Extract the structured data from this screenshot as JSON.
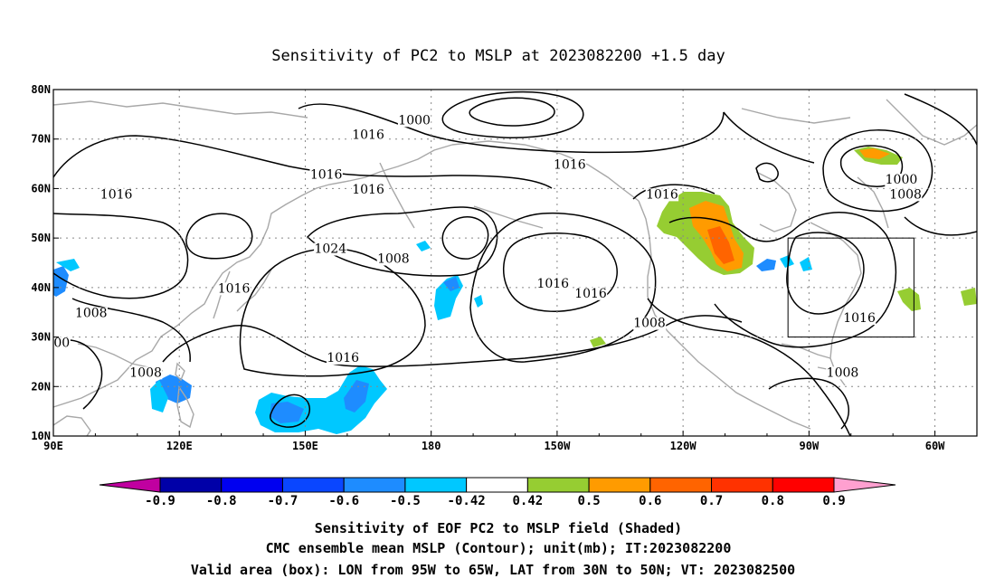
{
  "title": "Sensitivity of PC2 to MSLP at 2023082200 +1.5 day",
  "axes": {
    "x_ticks": [
      "90E",
      "120E",
      "150E",
      "180",
      "150W",
      "120W",
      "90W",
      "60W"
    ],
    "y_ticks": [
      "80N",
      "70N",
      "60N",
      "50N",
      "40N",
      "30N",
      "20N",
      "10N"
    ]
  },
  "map": {
    "lon_range": [
      90,
      310
    ],
    "lat_range": [
      10,
      80
    ],
    "valid_box": {
      "lon": [
        265,
        295
      ],
      "lat": [
        30,
        50
      ]
    }
  },
  "contour_labels": [
    {
      "text": "1000",
      "lon": 176,
      "lat": 73
    },
    {
      "text": "1016",
      "lon": 165,
      "lat": 70
    },
    {
      "text": "1016",
      "lon": 213,
      "lat": 64
    },
    {
      "text": "1016",
      "lon": 155,
      "lat": 62
    },
    {
      "text": "1016",
      "lon": 105,
      "lat": 58
    },
    {
      "text": "1016",
      "lon": 165,
      "lat": 59
    },
    {
      "text": "1016",
      "lon": 235,
      "lat": 58
    },
    {
      "text": "1000",
      "lon": 292,
      "lat": 61
    },
    {
      "text": "1008",
      "lon": 293,
      "lat": 58
    },
    {
      "text": "1024",
      "lon": 156,
      "lat": 47
    },
    {
      "text": "1008",
      "lon": 171,
      "lat": 45
    },
    {
      "text": "1016",
      "lon": 133,
      "lat": 39
    },
    {
      "text": "1016",
      "lon": 209,
      "lat": 40
    },
    {
      "text": "1016",
      "lon": 218,
      "lat": 38
    },
    {
      "text": "1008",
      "lon": 99,
      "lat": 34
    },
    {
      "text": "1016",
      "lon": 282,
      "lat": 33
    },
    {
      "text": "1008",
      "lon": 232,
      "lat": 32
    },
    {
      "text": "00",
      "lon": 92,
      "lat": 28
    },
    {
      "text": "1016",
      "lon": 159,
      "lat": 25
    },
    {
      "text": "1008",
      "lon": 112,
      "lat": 22
    },
    {
      "text": "1008",
      "lon": 278,
      "lat": 22
    }
  ],
  "colorbar": {
    "labels": [
      "-0.9",
      "-0.8",
      "-0.7",
      "-0.6",
      "-0.5",
      "-0.42",
      "0.42",
      "0.5",
      "0.6",
      "0.7",
      "0.8",
      "0.9"
    ],
    "colors": {
      "lt_min": "#c000a0",
      "bins": [
        "#0000a8",
        "#0000f0",
        "#0a46ff",
        "#1e8cff",
        "#00c8ff",
        "#ffffff",
        "#96cd32",
        "#ff9b00",
        "#ff6400",
        "#ff3200",
        "#ff0000"
      ],
      "gt_max": "#ffa0d0"
    }
  },
  "footer": {
    "line1": "Sensitivity of EOF PC2 to MSLP field (Shaded)",
    "line2": "CMC ensemble mean MSLP (Contour); unit(mb); IT:2023082200",
    "line3": "Valid area (box): LON from 95W to 65W, LAT from 30N to 50N; VT: 2023082500"
  }
}
